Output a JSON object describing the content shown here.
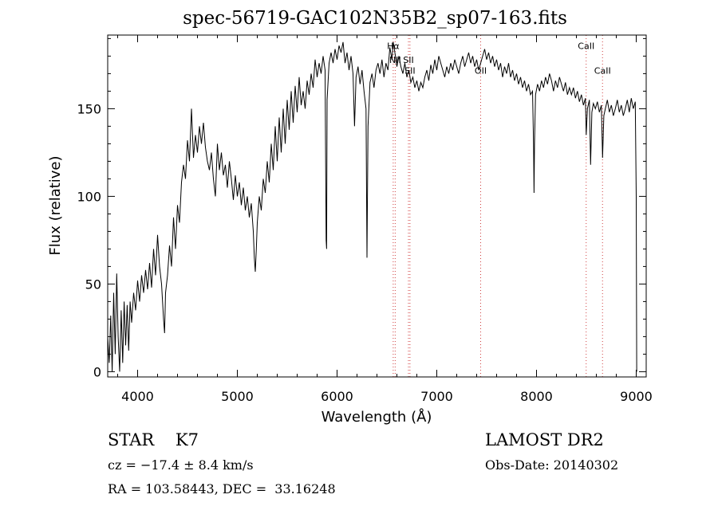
{
  "chart_data": {
    "type": "line",
    "title": "spec-56719-GAC102N35B2_sp07-163.fits",
    "xlabel": "Wavelength (Å)",
    "ylabel": "Flux (relative)",
    "xlim": [
      3700,
      9100
    ],
    "ylim": [
      -3,
      192
    ],
    "x_ticks": [
      4000,
      5000,
      6000,
      7000,
      8000,
      9000
    ],
    "y_ticks": [
      0,
      50,
      100,
      150
    ],
    "x_ticks_labels": [
      "4000",
      "5000",
      "6000",
      "7000",
      "8000",
      "9000"
    ],
    "y_ticks_labels": [
      "0",
      "50",
      "100",
      "150"
    ],
    "grid": false,
    "line_color": "#000000",
    "marker_line_color": "#d04040",
    "series": [
      {
        "values": [
          [
            3700,
            20
          ],
          [
            3715,
            5
          ],
          [
            3730,
            32
          ],
          [
            3745,
            0
          ],
          [
            3760,
            45
          ],
          [
            3775,
            10
          ],
          [
            3790,
            56
          ],
          [
            3805,
            20
          ],
          [
            3820,
            0
          ],
          [
            3835,
            35
          ],
          [
            3850,
            5
          ],
          [
            3865,
            40
          ],
          [
            3880,
            15
          ],
          [
            3895,
            38
          ],
          [
            3910,
            12
          ],
          [
            3925,
            40
          ],
          [
            3940,
            28
          ],
          [
            3960,
            45
          ],
          [
            3980,
            35
          ],
          [
            4000,
            52
          ],
          [
            4020,
            40
          ],
          [
            4040,
            55
          ],
          [
            4060,
            45
          ],
          [
            4080,
            58
          ],
          [
            4100,
            47
          ],
          [
            4120,
            62
          ],
          [
            4140,
            48
          ],
          [
            4160,
            70
          ],
          [
            4180,
            55
          ],
          [
            4200,
            78
          ],
          [
            4220,
            60
          ],
          [
            4240,
            50
          ],
          [
            4260,
            30
          ],
          [
            4270,
            22
          ],
          [
            4280,
            45
          ],
          [
            4300,
            55
          ],
          [
            4320,
            72
          ],
          [
            4340,
            60
          ],
          [
            4360,
            88
          ],
          [
            4380,
            70
          ],
          [
            4400,
            95
          ],
          [
            4420,
            85
          ],
          [
            4440,
            108
          ],
          [
            4460,
            118
          ],
          [
            4480,
            110
          ],
          [
            4500,
            132
          ],
          [
            4520,
            120
          ],
          [
            4540,
            150
          ],
          [
            4560,
            122
          ],
          [
            4580,
            135
          ],
          [
            4600,
            125
          ],
          [
            4620,
            140
          ],
          [
            4640,
            130
          ],
          [
            4660,
            142
          ],
          [
            4680,
            128
          ],
          [
            4700,
            120
          ],
          [
            4720,
            115
          ],
          [
            4740,
            125
          ],
          [
            4760,
            110
          ],
          [
            4780,
            100
          ],
          [
            4800,
            130
          ],
          [
            4820,
            115
          ],
          [
            4840,
            125
          ],
          [
            4860,
            112
          ],
          [
            4880,
            118
          ],
          [
            4900,
            105
          ],
          [
            4920,
            120
          ],
          [
            4940,
            110
          ],
          [
            4960,
            98
          ],
          [
            4980,
            112
          ],
          [
            5000,
            100
          ],
          [
            5020,
            108
          ],
          [
            5040,
            95
          ],
          [
            5060,
            105
          ],
          [
            5080,
            92
          ],
          [
            5100,
            100
          ],
          [
            5120,
            88
          ],
          [
            5140,
            96
          ],
          [
            5160,
            80
          ],
          [
            5170,
            65
          ],
          [
            5180,
            57
          ],
          [
            5190,
            70
          ],
          [
            5200,
            85
          ],
          [
            5220,
            100
          ],
          [
            5240,
            92
          ],
          [
            5260,
            110
          ],
          [
            5280,
            102
          ],
          [
            5300,
            120
          ],
          [
            5320,
            108
          ],
          [
            5340,
            130
          ],
          [
            5360,
            115
          ],
          [
            5380,
            140
          ],
          [
            5400,
            120
          ],
          [
            5420,
            145
          ],
          [
            5440,
            125
          ],
          [
            5460,
            150
          ],
          [
            5480,
            130
          ],
          [
            5500,
            155
          ],
          [
            5520,
            138
          ],
          [
            5540,
            160
          ],
          [
            5560,
            142
          ],
          [
            5580,
            163
          ],
          [
            5600,
            148
          ],
          [
            5620,
            168
          ],
          [
            5640,
            152
          ],
          [
            5660,
            160
          ],
          [
            5680,
            150
          ],
          [
            5700,
            166
          ],
          [
            5720,
            158
          ],
          [
            5740,
            170
          ],
          [
            5760,
            162
          ],
          [
            5780,
            178
          ],
          [
            5800,
            168
          ],
          [
            5820,
            176
          ],
          [
            5840,
            170
          ],
          [
            5860,
            180
          ],
          [
            5880,
            172
          ],
          [
            5890,
            75
          ],
          [
            5895,
            70
          ],
          [
            5900,
            155
          ],
          [
            5920,
            176
          ],
          [
            5940,
            182
          ],
          [
            5960,
            176
          ],
          [
            5980,
            184
          ],
          [
            6000,
            178
          ],
          [
            6020,
            186
          ],
          [
            6040,
            182
          ],
          [
            6060,
            188
          ],
          [
            6080,
            176
          ],
          [
            6100,
            182
          ],
          [
            6120,
            172
          ],
          [
            6140,
            180
          ],
          [
            6160,
            170
          ],
          [
            6175,
            140
          ],
          [
            6190,
            168
          ],
          [
            6210,
            174
          ],
          [
            6230,
            164
          ],
          [
            6250,
            172
          ],
          [
            6270,
            160
          ],
          [
            6290,
            150
          ],
          [
            6300,
            65
          ],
          [
            6310,
            140
          ],
          [
            6330,
            165
          ],
          [
            6350,
            170
          ],
          [
            6370,
            162
          ],
          [
            6390,
            172
          ],
          [
            6410,
            176
          ],
          [
            6430,
            170
          ],
          [
            6450,
            178
          ],
          [
            6470,
            168
          ],
          [
            6490,
            176
          ],
          [
            6510,
            172
          ],
          [
            6530,
            185
          ],
          [
            6550,
            178
          ],
          [
            6563,
            188
          ],
          [
            6580,
            182
          ],
          [
            6600,
            174
          ],
          [
            6620,
            180
          ],
          [
            6640,
            174
          ],
          [
            6660,
            170
          ],
          [
            6680,
            176
          ],
          [
            6700,
            168
          ],
          [
            6720,
            172
          ],
          [
            6740,
            165
          ],
          [
            6760,
            168
          ],
          [
            6780,
            162
          ],
          [
            6800,
            166
          ],
          [
            6820,
            160
          ],
          [
            6840,
            165
          ],
          [
            6860,
            162
          ],
          [
            6880,
            168
          ],
          [
            6900,
            172
          ],
          [
            6920,
            166
          ],
          [
            6940,
            175
          ],
          [
            6960,
            170
          ],
          [
            6980,
            178
          ],
          [
            7000,
            172
          ],
          [
            7020,
            180
          ],
          [
            7040,
            176
          ],
          [
            7060,
            172
          ],
          [
            7080,
            168
          ],
          [
            7100,
            174
          ],
          [
            7120,
            170
          ],
          [
            7140,
            176
          ],
          [
            7160,
            172
          ],
          [
            7180,
            178
          ],
          [
            7200,
            174
          ],
          [
            7220,
            170
          ],
          [
            7240,
            176
          ],
          [
            7260,
            180
          ],
          [
            7280,
            174
          ],
          [
            7300,
            178
          ],
          [
            7320,
            182
          ],
          [
            7340,
            176
          ],
          [
            7360,
            180
          ],
          [
            7380,
            174
          ],
          [
            7400,
            178
          ],
          [
            7420,
            172
          ],
          [
            7440,
            176
          ],
          [
            7460,
            180
          ],
          [
            7480,
            184
          ],
          [
            7500,
            178
          ],
          [
            7520,
            182
          ],
          [
            7540,
            176
          ],
          [
            7560,
            180
          ],
          [
            7580,
            174
          ],
          [
            7600,
            178
          ],
          [
            7620,
            172
          ],
          [
            7640,
            176
          ],
          [
            7660,
            168
          ],
          [
            7680,
            174
          ],
          [
            7700,
            170
          ],
          [
            7720,
            176
          ],
          [
            7740,
            168
          ],
          [
            7760,
            172
          ],
          [
            7780,
            166
          ],
          [
            7800,
            170
          ],
          [
            7820,
            164
          ],
          [
            7840,
            168
          ],
          [
            7860,
            162
          ],
          [
            7880,
            166
          ],
          [
            7900,
            160
          ],
          [
            7920,
            164
          ],
          [
            7940,
            158
          ],
          [
            7960,
            160
          ],
          [
            7970,
            130
          ],
          [
            7975,
            102
          ],
          [
            7980,
            130
          ],
          [
            7990,
            158
          ],
          [
            8010,
            164
          ],
          [
            8030,
            160
          ],
          [
            8050,
            166
          ],
          [
            8070,
            162
          ],
          [
            8090,
            168
          ],
          [
            8110,
            164
          ],
          [
            8130,
            170
          ],
          [
            8150,
            166
          ],
          [
            8170,
            160
          ],
          [
            8190,
            166
          ],
          [
            8210,
            162
          ],
          [
            8230,
            168
          ],
          [
            8250,
            164
          ],
          [
            8270,
            160
          ],
          [
            8290,
            165
          ],
          [
            8310,
            158
          ],
          [
            8330,
            162
          ],
          [
            8350,
            158
          ],
          [
            8370,
            162
          ],
          [
            8390,
            156
          ],
          [
            8410,
            160
          ],
          [
            8430,
            154
          ],
          [
            8450,
            158
          ],
          [
            8470,
            152
          ],
          [
            8490,
            156
          ],
          [
            8498,
            135
          ],
          [
            8510,
            150
          ],
          [
            8530,
            155
          ],
          [
            8542,
            118
          ],
          [
            8555,
            148
          ],
          [
            8570,
            153
          ],
          [
            8590,
            150
          ],
          [
            8610,
            154
          ],
          [
            8630,
            148
          ],
          [
            8650,
            152
          ],
          [
            8662,
            122
          ],
          [
            8675,
            146
          ],
          [
            8690,
            150
          ],
          [
            8710,
            155
          ],
          [
            8730,
            148
          ],
          [
            8750,
            152
          ],
          [
            8770,
            146
          ],
          [
            8790,
            150
          ],
          [
            8810,
            155
          ],
          [
            8830,
            148
          ],
          [
            8850,
            152
          ],
          [
            8870,
            146
          ],
          [
            8890,
            150
          ],
          [
            8910,
            155
          ],
          [
            8930,
            148
          ],
          [
            8950,
            156
          ],
          [
            8970,
            150
          ],
          [
            8990,
            154
          ],
          [
            9000,
            100
          ],
          [
            9005,
            0
          ]
        ]
      }
    ],
    "line_markers": [
      {
        "x": 6563,
        "label": "Hα",
        "label_y": 184
      },
      {
        "x": 6583,
        "label": "NII",
        "label_y": 176
      },
      {
        "x": 6716,
        "label": "SII",
        "label_y": 176
      },
      {
        "x": 6731,
        "label": "SII",
        "label_y": 170
      },
      {
        "x": 7440,
        "label": "OII",
        "label_y": 170
      },
      {
        "x": 8498,
        "label": "CaII",
        "label_y": 184
      },
      {
        "x": 8662,
        "label": "CaII",
        "label_y": 170
      }
    ]
  },
  "info": {
    "object_class": "STAR    K7",
    "cz": "cz = −17.4 ± 8.4 km/s",
    "radec": "RA = 103.58443, DEC =  33.16248",
    "survey": "LAMOST DR2",
    "obs_date": "Obs-Date: 20140302"
  }
}
